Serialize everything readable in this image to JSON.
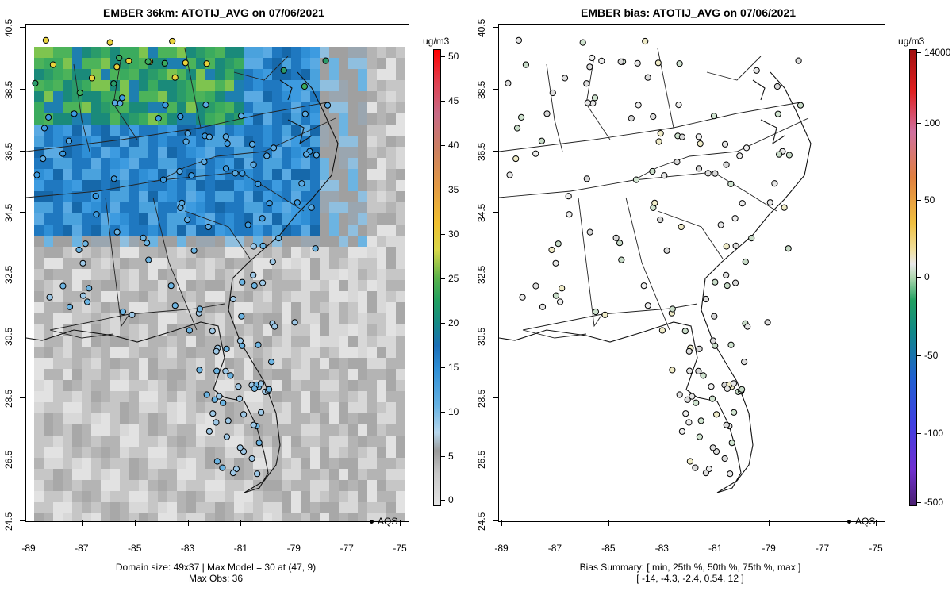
{
  "left_panel": {
    "title": "EMBER 36km: ATOTIJ_AVG on 07/06/2021",
    "colorbar_unit": "ug/m3",
    "colorbar_ticks": [
      "0",
      "5",
      "10",
      "15",
      "20",
      "25",
      "30",
      "35",
      "40",
      "45",
      "50"
    ],
    "legend_label": "AQS",
    "footer_line1": "Domain size: 49x37 | Max Model = 30 at (47, 9)",
    "footer_line2": "Max Obs: 36"
  },
  "right_panel": {
    "title": "EMBER bias: ATOTIJ_AVG on 07/06/2021",
    "colorbar_unit": "ug/m3",
    "colorbar_ticks": [
      "-500",
      "-100",
      "-50",
      "0",
      "50",
      "100",
      "14000"
    ],
    "legend_label": "AQS",
    "footer_line1": "Bias Summary: [ min, 25th %, 50th %, 75th %, max ]",
    "footer_line2": "[ -14,   -4.3,   -2.4,   0.54,   12 ]"
  },
  "axes": {
    "x_ticks": [
      "-89",
      "-87",
      "-85",
      "-83",
      "-81",
      "-79",
      "-77",
      "-75"
    ],
    "y_ticks": [
      "24.5",
      "26.5",
      "28.5",
      "30.5",
      "32.5",
      "34.5",
      "36.5",
      "38.5",
      "40.5"
    ]
  }
}
